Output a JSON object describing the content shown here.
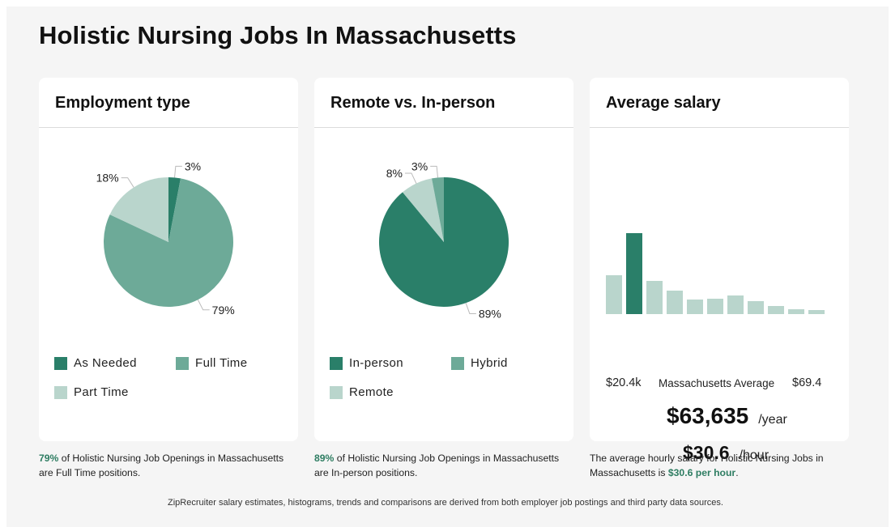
{
  "page": {
    "title": "Holistic Nursing Jobs In Massachusetts"
  },
  "cards": {
    "employment": {
      "title": "Employment type",
      "caption_highlight": "79%",
      "caption_rest": " of Holistic Nursing Job Openings in Massachusetts are Full Time positions."
    },
    "remote": {
      "title": "Remote vs. In-person",
      "caption_highlight": "89%",
      "caption_rest": " of Holistic Nursing Job Openings in Massachusetts are In-person positions."
    },
    "salary": {
      "title": "Average salary",
      "axis_min": "$20.4k",
      "axis_mid": "Massachusetts Average",
      "axis_max": "$69.4",
      "yearly": "$63,635",
      "yearly_unit": "/year",
      "hourly": "$30.6",
      "hourly_unit": "/hour",
      "caption_prefix": "The average hourly salary for Holistic Nursing Jobs in Massachusetts is ",
      "caption_highlight": "$30.6 per hour",
      "caption_suffix": "."
    }
  },
  "footnote": "ZipRecruiter salary estimates, histograms, trends and comparisons are derived from both employer job postings and third party data sources.",
  "colors": {
    "dark": "#2a7f69",
    "mid": "#6daa98",
    "light": "#b9d5cc"
  },
  "chart_data": [
    {
      "type": "pie",
      "title": "Employment type",
      "slices": [
        {
          "label": "As Needed",
          "value": 3,
          "label_text": "3%",
          "color": "#2a7f69"
        },
        {
          "label": "Full Time",
          "value": 79,
          "label_text": "79%",
          "color": "#6daa98"
        },
        {
          "label": "Part Time",
          "value": 18,
          "label_text": "18%",
          "color": "#b9d5cc"
        }
      ]
    },
    {
      "type": "pie",
      "title": "Remote vs. In-person",
      "slices": [
        {
          "label": "In-person",
          "value": 89,
          "label_text": "89%",
          "color": "#2a7f69"
        },
        {
          "label": "Remote",
          "value": 8,
          "label_text": "8%",
          "color": "#b9d5cc"
        },
        {
          "label": "Hybrid",
          "value": 3,
          "label_text": "3%",
          "color": "#6daa98"
        }
      ]
    },
    {
      "type": "bar",
      "title": "Average salary",
      "x_range_labels": [
        "$20.4k",
        "$69.4"
      ],
      "values": [
        48,
        100,
        41,
        29,
        18,
        19,
        23,
        16,
        10,
        6,
        5
      ],
      "highlight_index": 1
    }
  ]
}
